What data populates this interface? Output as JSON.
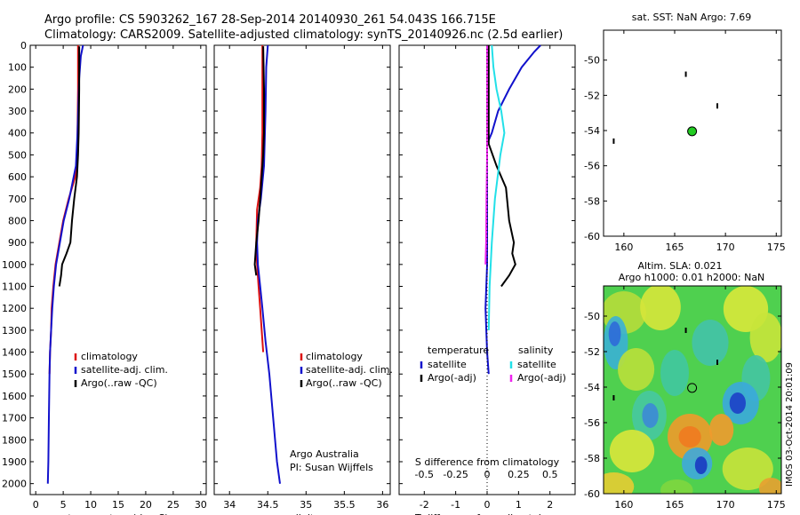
{
  "title": {
    "line1": "Argo profile: CS 5903262_167 28-Sep-2014 20140930_261 54.043S 166.715E",
    "line2": "Climatology: CARS2009. Satellite-adjusted climatology: synTS_20140926.nc (2.5d earlier)"
  },
  "colors": {
    "climatology": "#dd1111",
    "satellite": "#1111cc",
    "argo": "#000000",
    "sal_satellite": "#22e0e8",
    "sal_argo": "#ee22ee",
    "argo_dot": "#22cc22"
  },
  "legend_profiles": {
    "climatology": "climatology",
    "satellite": "satellite-adj. clim.",
    "argo": "Argo(..raw -QC)"
  },
  "legend_diff": {
    "temperature": "temperature",
    "salinity": "salinity",
    "t_satellite": "satellite",
    "t_argo": "Argo(-adj)",
    "s_satellite": "satellite",
    "s_argo": "Argo(-adj)"
  },
  "credits": {
    "line1": "Argo Australia",
    "line2": "PI: Susan Wijffels"
  },
  "sst_title": "sat. SST: NaN Argo: 7.69",
  "sla_title": {
    "line1": "Altim. SLA: 0.021",
    "line2": "Argo h1000: 0.01 h2000: NaN"
  },
  "watermark": "IMOS 03-Oct-2014 20:01:09",
  "chart_data": [
    {
      "type": "line",
      "panel": "temperature",
      "xlabel": "temperature (deg C)",
      "ylabel": "",
      "xlim": [
        -1,
        31
      ],
      "ylim": [
        2050,
        0
      ],
      "xticks": [
        "0",
        "5",
        "10",
        "15",
        "20",
        "25",
        "30"
      ],
      "yticks": [
        "0",
        "100",
        "200",
        "300",
        "400",
        "500",
        "600",
        "700",
        "800",
        "900",
        "1000",
        "1100",
        "1200",
        "1300",
        "1400",
        "1500",
        "1600",
        "1700",
        "1800",
        "1900",
        "2000"
      ],
      "series": [
        {
          "name": "climatology",
          "color": "#dd1111",
          "x": [
            7.7,
            7.7,
            7.6,
            7.5,
            7.2,
            6.0,
            5.0,
            4.3,
            3.6,
            3.2,
            2.9,
            2.8,
            2.6,
            2.5
          ],
          "y": [
            0,
            200,
            400,
            550,
            600,
            700,
            800,
            900,
            1000,
            1100,
            1200,
            1300,
            1400,
            1500
          ]
        },
        {
          "name": "satellite-adj. clim.",
          "color": "#1111cc",
          "x": [
            8.6,
            8.2,
            7.9,
            7.6,
            7.3,
            6.1,
            5.1,
            4.4,
            3.7,
            3.3,
            3.0,
            2.8,
            2.6,
            2.5,
            2.4,
            2.3,
            2.2
          ],
          "y": [
            0,
            50,
            150,
            400,
            550,
            700,
            800,
            900,
            1000,
            1100,
            1200,
            1300,
            1400,
            1500,
            1700,
            1900,
            2000
          ]
        },
        {
          "name": "Argo(..raw -QC)",
          "color": "#000000",
          "x": [
            7.9,
            7.9,
            7.8,
            7.7,
            7.5,
            7.0,
            6.6,
            6.3,
            5.6,
            4.8,
            4.6,
            4.3
          ],
          "y": [
            5,
            200,
            400,
            500,
            600,
            700,
            800,
            900,
            950,
            1000,
            1050,
            1100
          ]
        }
      ]
    },
    {
      "type": "line",
      "panel": "salinity",
      "xlabel": "salinity",
      "ylabel": "",
      "xlim": [
        33.8,
        36.1
      ],
      "ylim": [
        2050,
        0
      ],
      "xticks": [
        "34",
        "34.5",
        "35",
        "35.5",
        "36"
      ],
      "series": [
        {
          "name": "climatology",
          "color": "#dd1111",
          "x": [
            34.43,
            34.43,
            34.43,
            34.42,
            34.4,
            34.36,
            34.35,
            34.36,
            34.38,
            34.4,
            34.42,
            34.44
          ],
          "y": [
            0,
            200,
            400,
            550,
            650,
            750,
            900,
            1000,
            1100,
            1200,
            1300,
            1400
          ]
        },
        {
          "name": "satellite-adj. clim.",
          "color": "#1111cc",
          "x": [
            34.5,
            34.48,
            34.47,
            34.45,
            34.41,
            34.37,
            34.36,
            34.37,
            34.4,
            34.43,
            34.47,
            34.52,
            34.57,
            34.62,
            34.66
          ],
          "y": [
            0,
            100,
            300,
            550,
            700,
            800,
            900,
            1000,
            1100,
            1200,
            1350,
            1500,
            1700,
            1900,
            2000
          ]
        },
        {
          "name": "Argo(..raw -QC)",
          "color": "#000000",
          "x": [
            34.44,
            34.45,
            34.45,
            34.44,
            34.42,
            34.4,
            34.38,
            34.35,
            34.33,
            34.35
          ],
          "y": [
            5,
            200,
            400,
            500,
            600,
            700,
            800,
            900,
            1000,
            1050
          ]
        }
      ]
    },
    {
      "type": "line",
      "panel": "difference",
      "xlabel": "T difference from climatology",
      "x2label": "S difference from climatology",
      "xlim": [
        -2.8,
        2.8
      ],
      "ylim": [
        2050,
        0
      ],
      "xticks": [
        "-2",
        "-1",
        "0",
        "1",
        "2"
      ],
      "x2ticks": [
        "-0.5",
        "-0.25",
        "0",
        "0.25",
        "0.5"
      ],
      "series": [
        {
          "name": "temperature satellite",
          "color": "#1111cc",
          "x": [
            1.7,
            1.5,
            1.1,
            0.7,
            0.35,
            0.15,
            0.0,
            0.0,
            0.0,
            0.0,
            -0.05,
            0.0,
            0.05
          ],
          "y": [
            0,
            30,
            100,
            200,
            300,
            400,
            450,
            600,
            800,
            1000,
            1200,
            1400,
            1500
          ]
        },
        {
          "name": "temperature Argo(-adj)",
          "color": "#000000",
          "x": [
            0.05,
            0.05,
            0.05,
            0.3,
            0.6,
            0.7,
            0.85,
            0.8,
            0.9,
            0.7,
            0.45
          ],
          "y": [
            0,
            300,
            450,
            550,
            650,
            800,
            900,
            950,
            1000,
            1050,
            1100
          ]
        },
        {
          "name": "salinity satellite",
          "color": "#22e0e8",
          "x": [
            0.15,
            0.2,
            0.3,
            0.45,
            0.55,
            0.42,
            0.25,
            0.15,
            0.08,
            0.05
          ],
          "y": [
            0,
            100,
            200,
            300,
            400,
            500,
            700,
            900,
            1100,
            1300
          ]
        },
        {
          "name": "salinity Argo(-adj)",
          "color": "#ee22ee",
          "x": [
            0.0,
            0.0,
            0.0,
            -0.02,
            -0.03,
            -0.05
          ],
          "y": [
            0,
            300,
            500,
            700,
            900,
            1000
          ]
        }
      ]
    },
    {
      "type": "scatter",
      "panel": "sst-map",
      "xlim": [
        158,
        175.5
      ],
      "ylim": [
        -60,
        -48.3
      ],
      "xticks": [
        "160",
        "165",
        "170",
        "175"
      ],
      "yticks": [
        "-50",
        "-52",
        "-54",
        "-56",
        "-58",
        "-60"
      ],
      "points": [
        [
          166.1,
          -50.8
        ],
        [
          169.2,
          -52.6
        ],
        [
          159.0,
          -54.6
        ]
      ],
      "argo_position": [
        166.715,
        -54.043
      ]
    },
    {
      "type": "heatmap",
      "panel": "sla-map",
      "xlim": [
        158,
        175.5
      ],
      "ylim": [
        -60,
        -48.3
      ],
      "xticks": [
        "160",
        "165",
        "170",
        "175"
      ],
      "yticks": [
        "-50",
        "-52",
        "-54",
        "-56",
        "-58",
        "-60"
      ],
      "points": [
        [
          166.1,
          -50.8
        ],
        [
          169.2,
          -52.6
        ],
        [
          159.0,
          -54.6
        ]
      ],
      "argo_position": [
        166.715,
        -54.043
      ]
    }
  ]
}
